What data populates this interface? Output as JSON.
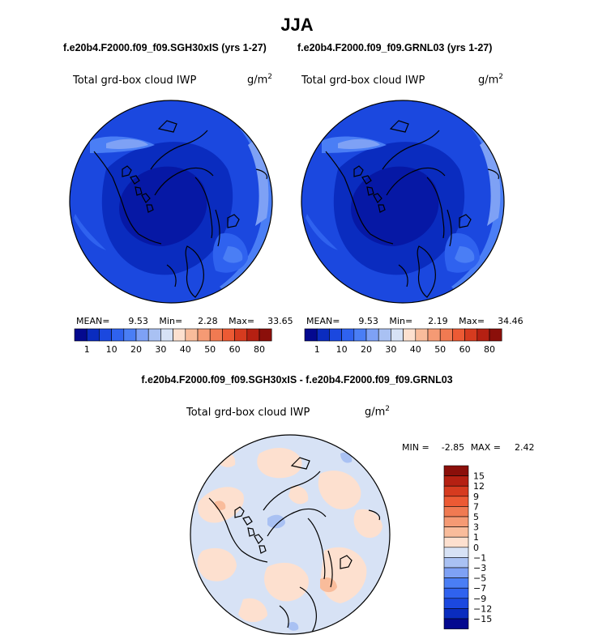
{
  "figure": {
    "season": "JJA",
    "left_case": "f.e20b4.F2000.f09_f09.SGH30xIS (yrs 1-27)",
    "right_case": "f.e20b4.F2000.f09_f09.GRNL03 (yrs 1-27)",
    "diff_title": "f.e20b4.F2000.f09_f09.SGH30xIS - f.e20b4.F2000.f09_f09.GRNL03"
  },
  "chart_data": [
    {
      "type": "heatmap",
      "projection": "north-polar-stereographic",
      "title": "Total grd-box cloud IWP",
      "units_base": "g/m",
      "units_exp": "2",
      "mean_label": "MEAN=",
      "mean": "9.53",
      "min_label": "Min=",
      "min": "2.28",
      "max_label": "Max=",
      "max": "33.65",
      "colorbar_ticks": [
        "1",
        "10",
        "20",
        "30",
        "40",
        "50",
        "60",
        "80"
      ],
      "colorbar_colors": [
        "#04098f",
        "#0a2cbf",
        "#1b48df",
        "#2f62ef",
        "#4a7ef5",
        "#7ea1f5",
        "#a9c1f3",
        "#d7e2f5",
        "#fde0cf",
        "#f9bc9b",
        "#f59a74",
        "#f07a52",
        "#ec5a34",
        "#d63b1f",
        "#b52012",
        "#8b0f0a"
      ]
    },
    {
      "type": "heatmap",
      "projection": "north-polar-stereographic",
      "title": "Total grd-box cloud IWP",
      "units_base": "g/m",
      "units_exp": "2",
      "mean_label": "MEAN=",
      "mean": "9.53",
      "min_label": "Min=",
      "min": "2.19",
      "max_label": "Max=",
      "max": "34.46",
      "colorbar_ticks": [
        "1",
        "10",
        "20",
        "30",
        "40",
        "50",
        "60",
        "80"
      ],
      "colorbar_colors": [
        "#04098f",
        "#0a2cbf",
        "#1b48df",
        "#2f62ef",
        "#4a7ef5",
        "#7ea1f5",
        "#a9c1f3",
        "#d7e2f5",
        "#fde0cf",
        "#f9bc9b",
        "#f59a74",
        "#f07a52",
        "#ec5a34",
        "#d63b1f",
        "#b52012",
        "#8b0f0a"
      ]
    },
    {
      "type": "heatmap",
      "projection": "north-polar-stereographic",
      "title": "Total grd-box cloud IWP",
      "units_base": "g/m",
      "units_exp": "2",
      "min_label": "MIN =",
      "min": "-2.85",
      "max_label": "MAX =",
      "max": "2.42",
      "colorbar_ticks": [
        "15",
        "12",
        "9",
        "7",
        "5",
        "3",
        "1",
        "0",
        "−1",
        "−3",
        "−5",
        "−7",
        "−9",
        "−12",
        "−15"
      ],
      "colorbar_colors": [
        "#8b0f0a",
        "#b52012",
        "#d63b1f",
        "#ec5a34",
        "#f07a52",
        "#f59a74",
        "#f9bc9b",
        "#fde0cf",
        "#d7e2f5",
        "#a9c1f3",
        "#7ea1f5",
        "#4a7ef5",
        "#2f62ef",
        "#1b48df",
        "#0a2cbf",
        "#04098f"
      ]
    }
  ]
}
